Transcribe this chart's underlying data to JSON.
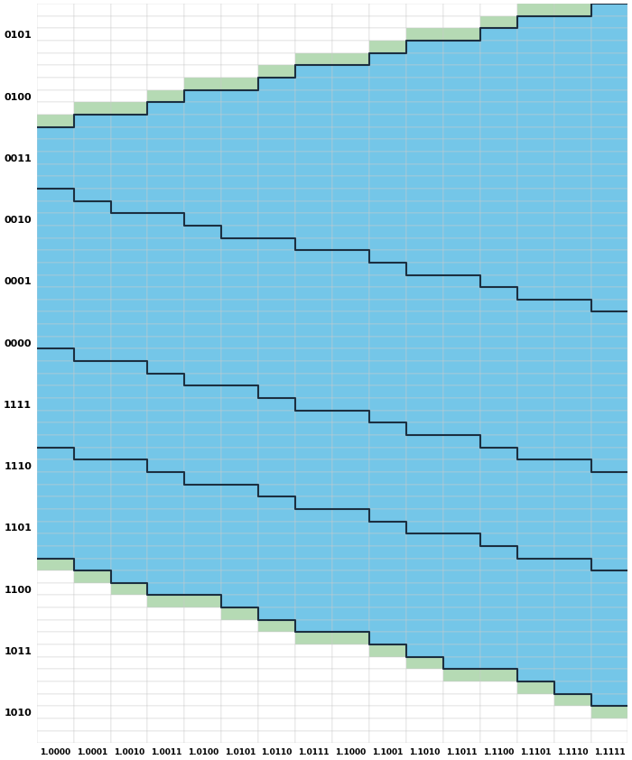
{
  "y_labels": [
    "0101",
    "0100",
    "0011",
    "0010",
    "0001",
    "0000",
    "1111",
    "1110",
    "1101",
    "1100",
    "1011",
    "1010"
  ],
  "x_labels": [
    "1.0000",
    "1.0001",
    "1.0010",
    "1.0011",
    "1.0100",
    "1.0101",
    "1.0110",
    "1.0111",
    "1.1000",
    "1.1001",
    "1.1010",
    "1.1011",
    "1.1100",
    "1.1101",
    "1.1110",
    "1.1111"
  ],
  "color_blue": "#74C6E8",
  "color_green": "#B5DAB4",
  "color_white": "#FFFFFF",
  "color_line": "#1C2F40",
  "grid_color": "#CCCCCC",
  "n_cols": 16,
  "subrows_per_label": 5,
  "n_labels": 12,
  "label_positions_from_top": [
    0,
    1,
    2,
    3,
    4,
    5,
    6,
    7,
    8,
    9,
    10,
    11
  ]
}
